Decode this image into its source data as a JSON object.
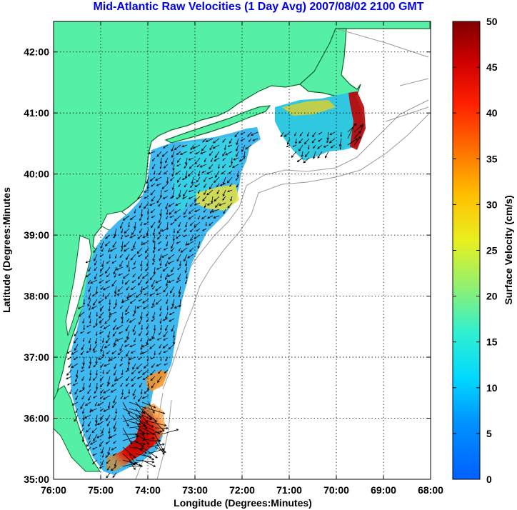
{
  "title": "Mid-Atlantic Raw Velocities (1 Day Avg) 2007/08/02 2100 GMT",
  "xlabel": "Longitude (Degrees:Minutes)",
  "ylabel": "Latitude (Degrees:Minutes",
  "colorbar_label": "Surface Velocity (cm/s)",
  "x_ticks": [
    "76:00",
    "75:00",
    "74:00",
    "73:00",
    "72:00",
    "71:00",
    "70:00",
    "69:00",
    "68:00"
  ],
  "y_ticks": [
    "35:00",
    "36:00",
    "37:00",
    "38:00",
    "39:00",
    "40:00",
    "41:00",
    "42:00"
  ],
  "colorbar_ticks": [
    "0",
    "5",
    "10",
    "15",
    "20",
    "25",
    "30",
    "35",
    "40",
    "45",
    "50"
  ],
  "extent": {
    "lon": [
      -76,
      -68
    ],
    "lat": [
      35,
      42.5
    ]
  },
  "colorbar_range": [
    0,
    50
  ],
  "colors": {
    "land": "#55f0a6",
    "coast": "#0a6a2a",
    "grid": "#000000",
    "bathy": "#9a9a9a",
    "arrow": "#000000",
    "title": "#0000ee"
  }
}
